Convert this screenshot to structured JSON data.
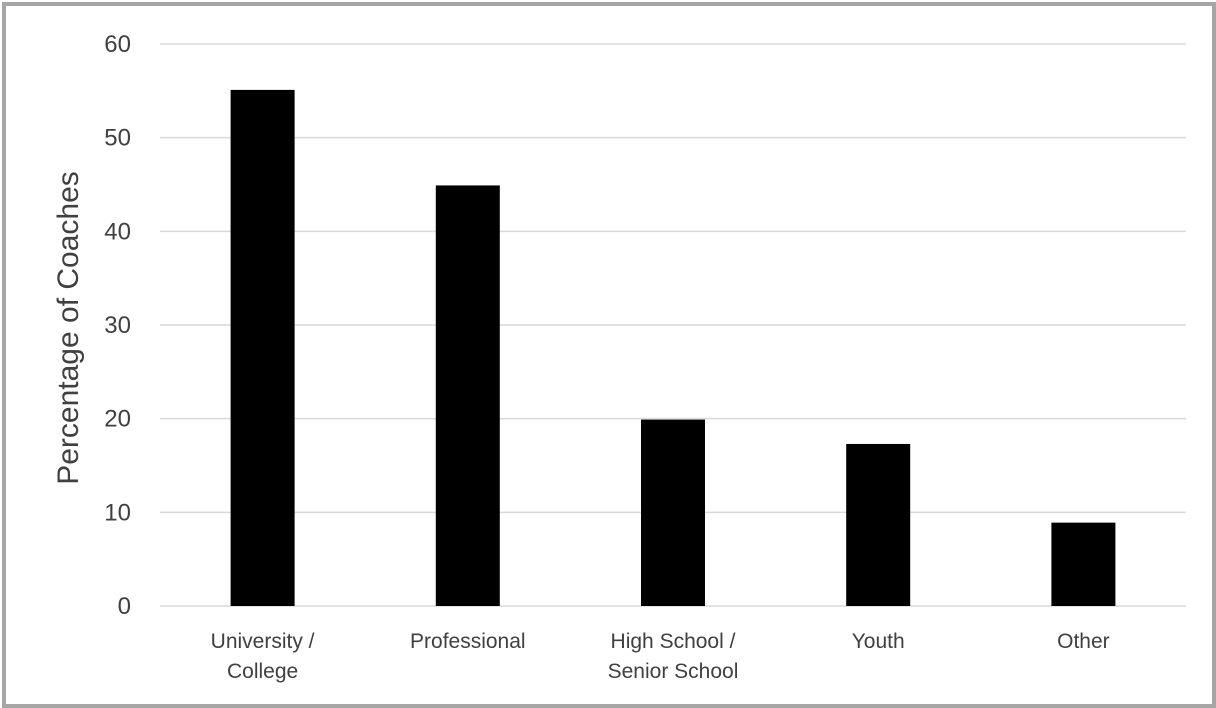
{
  "chart_data": {
    "type": "bar",
    "categories": [
      [
        "University /",
        "College"
      ],
      [
        "Professional"
      ],
      [
        "High School /",
        "Senior School"
      ],
      [
        "Youth"
      ],
      [
        "Other"
      ]
    ],
    "values": [
      55.1,
      44.9,
      19.9,
      17.3,
      8.9
    ],
    "ylabel": "Percentage of Coaches",
    "xlabel": "",
    "ylim": [
      0,
      60
    ],
    "yticks": [
      0,
      10,
      20,
      30,
      40,
      50,
      60
    ],
    "grid": true,
    "legend": "none",
    "colors": {
      "bar": "#000000",
      "grid": "#d9d9d9",
      "text": "#404040",
      "frame": "#a6a6a6"
    }
  }
}
